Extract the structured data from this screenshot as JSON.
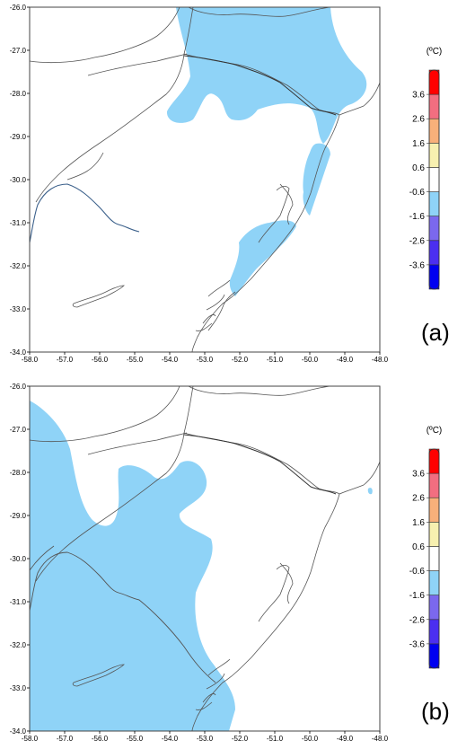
{
  "colors": {
    "anomaly": "#8fd3f7",
    "border": "#555555",
    "river": "#3a5f8a",
    "frame": "#444444",
    "colorbar": [
      "#0000f0",
      "#4b2ff0",
      "#7b68ee",
      "#8fd3f7",
      "#ffffff",
      "#f7f0b0",
      "#f8b07a",
      "#f26e80",
      "#ff0000"
    ]
  },
  "axes": {
    "x_ticks": [
      "-58.0",
      "-57.0",
      "-56.0",
      "-55.0",
      "-54.0",
      "-53.0",
      "-52.0",
      "-51.0",
      "-50.0",
      "-49.0",
      "-48.0"
    ],
    "y_ticks": [
      "-26.0",
      "-27.0",
      "-28.0",
      "-29.0",
      "-30.0",
      "-31.0",
      "-32.0",
      "-33.0",
      "-34.0"
    ],
    "lon_range": [
      -58.0,
      -48.0
    ],
    "lat_range": [
      -34.0,
      -26.0
    ]
  },
  "colorbar": {
    "unit": "(ºC)",
    "labels": [
      "3.6",
      "2.6",
      "1.6",
      "0.6",
      "-0.6",
      "-1.6",
      "-2.6",
      "-3.6"
    ]
  },
  "panels": [
    {
      "label": "(a)"
    },
    {
      "label": "(b)"
    }
  ]
}
